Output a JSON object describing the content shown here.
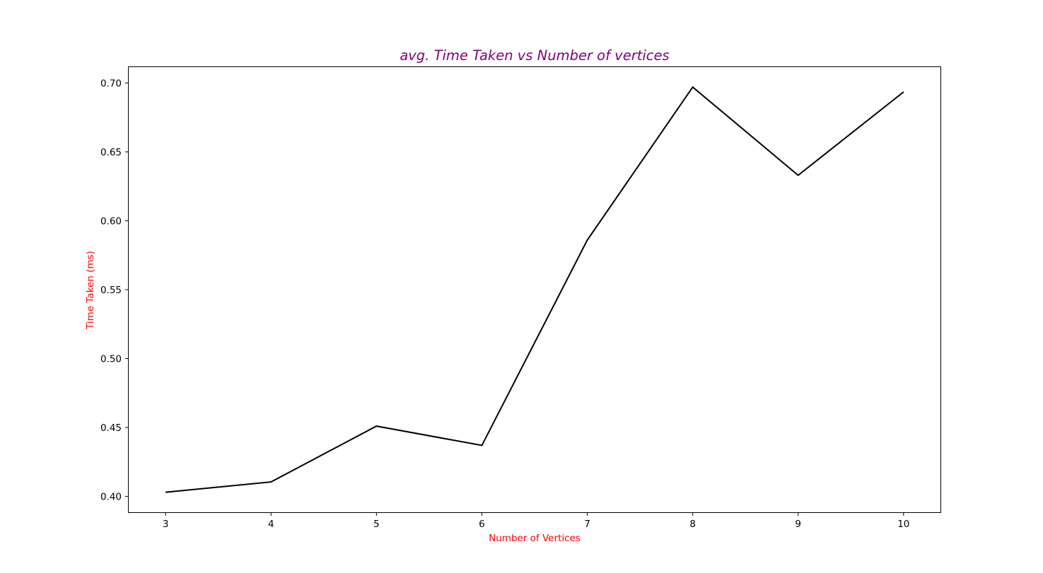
{
  "chart_data": {
    "type": "line",
    "title": "avg. Time Taken vs Number of vertices",
    "xlabel": "Number of Vertices",
    "ylabel": "Time Taken (ms)",
    "x": [
      3,
      4,
      5,
      6,
      7,
      8,
      9,
      10
    ],
    "series": [
      {
        "values": [
          0.403,
          0.4105,
          0.451,
          0.437,
          0.586,
          0.697,
          0.633,
          0.6935
        ],
        "color": "#000000"
      }
    ],
    "x_ticks": [
      3,
      4,
      5,
      6,
      7,
      8,
      9,
      10
    ],
    "x_tick_labels": [
      "3",
      "4",
      "5",
      "6",
      "7",
      "8",
      "9",
      "10"
    ],
    "y_ticks": [
      0.4,
      0.45,
      0.5,
      0.55,
      0.6,
      0.65,
      0.7
    ],
    "y_tick_labels": [
      "0.40",
      "0.45",
      "0.50",
      "0.55",
      "0.60",
      "0.65",
      "0.70"
    ],
    "xlim": [
      2.65,
      10.35
    ],
    "ylim": [
      0.3885,
      0.7115
    ],
    "grid": false,
    "legend": "none",
    "colors": {
      "title": "#800080",
      "axis_labels": "#ff0000",
      "line": "#000000",
      "frame": "#000000"
    }
  }
}
